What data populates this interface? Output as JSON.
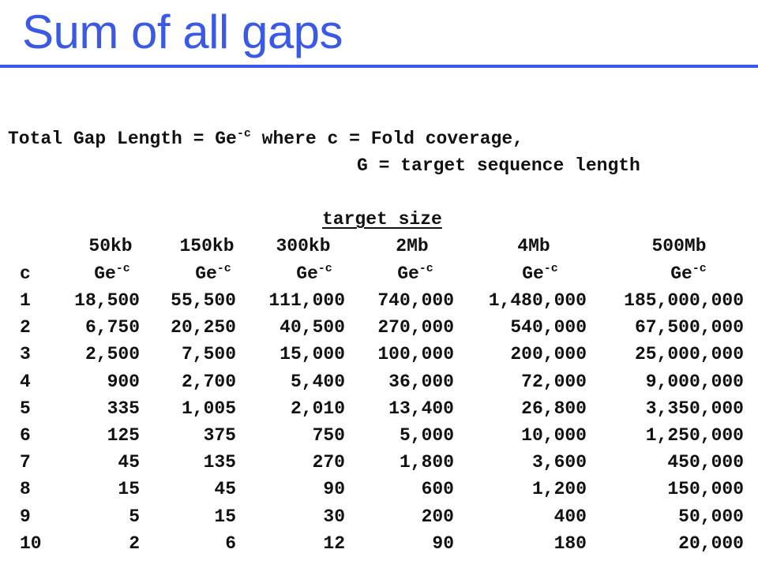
{
  "title": "Sum of all gaps",
  "formula": {
    "prefix": "Total Gap Length = Ge",
    "exponent": "-c",
    "suffix": " where c = Fold coverage,",
    "line2": "G = target sequence length"
  },
  "table": {
    "group_header": "target size",
    "sizes": [
      "50kb",
      "150kb",
      "300kb",
      "2Mb",
      "4Mb",
      "500Mb"
    ],
    "c_header": "c",
    "unit_base": "Ge",
    "unit_exponent": "-c",
    "rows": [
      {
        "c": "1",
        "values": [
          "18,500",
          "55,500",
          "111,000",
          "740,000",
          "1,480,000",
          "185,000,000"
        ]
      },
      {
        "c": "2",
        "values": [
          "6,750",
          "20,250",
          "40,500",
          "270,000",
          "540,000",
          "67,500,000"
        ]
      },
      {
        "c": "3",
        "values": [
          "2,500",
          "7,500",
          "15,000",
          "100,000",
          "200,000",
          "25,000,000"
        ]
      },
      {
        "c": "4",
        "values": [
          "900",
          "2,700",
          "5,400",
          "36,000",
          "72,000",
          "9,000,000"
        ]
      },
      {
        "c": "5",
        "values": [
          "335",
          "1,005",
          "2,010",
          "13,400",
          "26,800",
          "3,350,000"
        ]
      },
      {
        "c": "6",
        "values": [
          "125",
          "375",
          "750",
          "5,000",
          "10,000",
          "1,250,000"
        ]
      },
      {
        "c": "7",
        "values": [
          "45",
          "135",
          "270",
          "1,800",
          "3,600",
          "450,000"
        ]
      },
      {
        "c": "8",
        "values": [
          "15",
          "45",
          "90",
          "600",
          "1,200",
          "150,000"
        ]
      },
      {
        "c": "9",
        "values": [
          "5",
          "15",
          "30",
          "200",
          "400",
          "50,000"
        ]
      },
      {
        "c": "10",
        "values": [
          "2",
          "6",
          "12",
          "90",
          "180",
          "20,000"
        ]
      }
    ]
  },
  "colors": {
    "title": "#3a59e6",
    "text": "#111111",
    "background": "#ffffff"
  }
}
